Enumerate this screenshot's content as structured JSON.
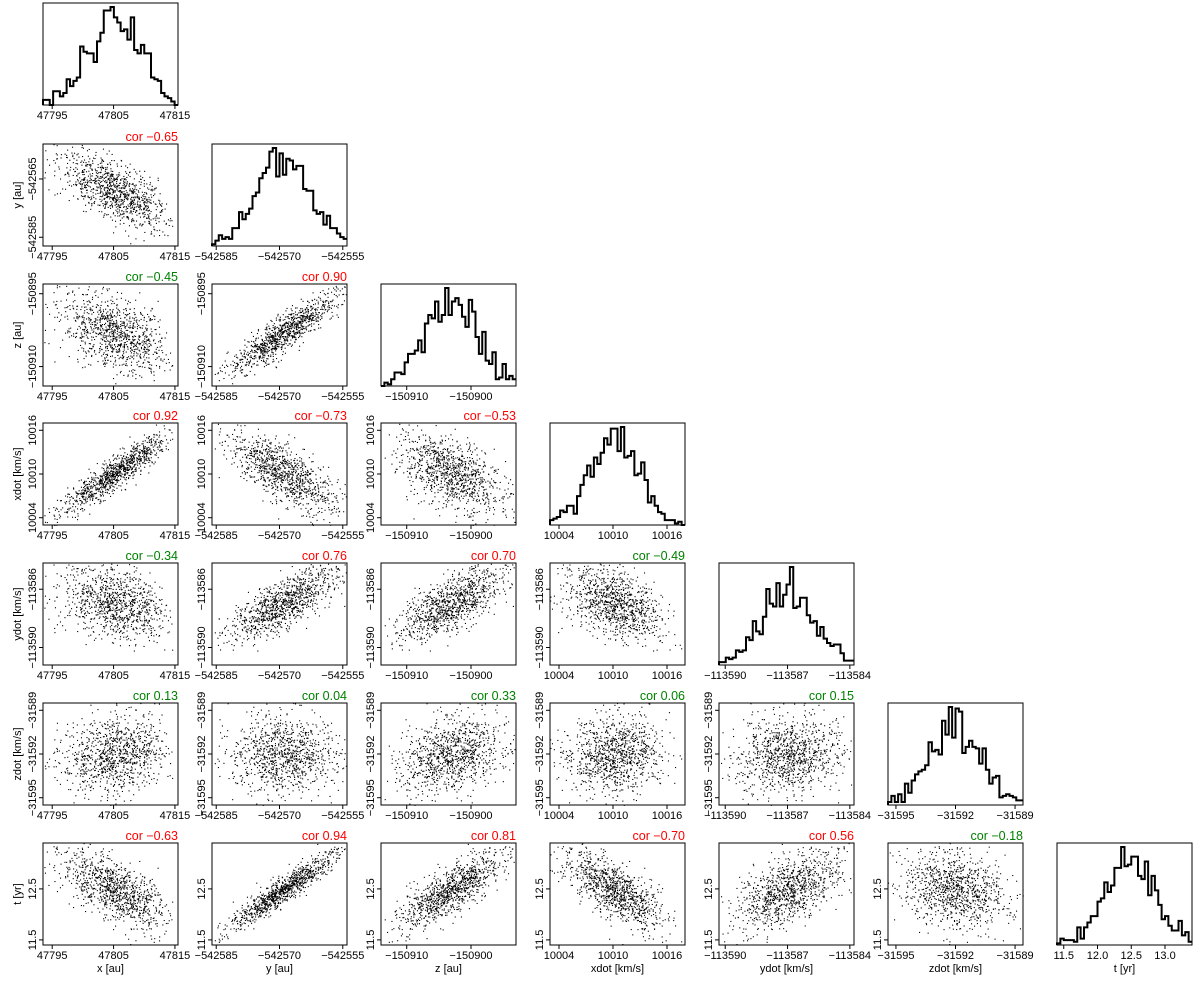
{
  "chart_data": {
    "type": "scatter",
    "variables": [
      {
        "name": "x",
        "label": "x [au]",
        "ylabel": "",
        "xlim": [
          47793.5,
          47815.5
        ],
        "ylim": [
          47793.5,
          47815.5
        ],
        "ticks": [
          47795,
          47805,
          47815
        ],
        "tick_labels": [
          "47795",
          "47805",
          "47815"
        ],
        "mean": 47805,
        "sd": 4.4
      },
      {
        "name": "y",
        "label": "y [au]",
        "ylabel": "y [au]",
        "xlim": [
          -542586,
          -542554
        ],
        "ylim": [
          -542588,
          -542553
        ],
        "ticks": [
          -542585,
          -542570,
          -542555
        ],
        "tick_labels": [
          "−542585",
          "−542570",
          "−542555"
        ],
        "yticks": [
          -542585,
          -542565
        ],
        "ytick_labels": [
          "−542585",
          "−542565"
        ],
        "mean": -542569,
        "sd": 6.5
      },
      {
        "name": "z",
        "label": "z [au]",
        "ylabel": "z [au]",
        "xlim": [
          -150914,
          -150893
        ],
        "ylim": [
          -150914,
          -150893
        ],
        "ticks": [
          -150910,
          -150900
        ],
        "tick_labels": [
          "−150910",
          "−150900"
        ],
        "yticks": [
          -150910,
          -150895
        ],
        "ytick_labels": [
          "−150910",
          "−150895"
        ],
        "mean": -150903,
        "sd": 4.2
      },
      {
        "name": "xdot",
        "label": "xdot [km/s]",
        "ylabel": "xdot [km/s]",
        "xlim": [
          10003,
          10018
        ],
        "ylim": [
          10003,
          10017
        ],
        "ticks": [
          10004,
          10010,
          10016
        ],
        "tick_labels": [
          "10004",
          "10010",
          "10016"
        ],
        "mean": 10010,
        "sd": 2.8
      },
      {
        "name": "ydot",
        "label": "ydot [km/s]",
        "ylabel": "ydot [km/s]",
        "xlim": [
          -113590.3,
          -113583.8
        ],
        "ylim": [
          -113591.2,
          -113584.2
        ],
        "ticks": [
          -113590,
          -113587,
          -113584
        ],
        "tick_labels": [
          "−113590",
          "−113587",
          "−113584"
        ],
        "yticks": [
          -113590,
          -113586
        ],
        "ytick_labels": [
          "−113590",
          "−113586"
        ],
        "mean": -113587,
        "sd": 1.25
      },
      {
        "name": "zdot",
        "label": "zdot [km/s]",
        "ylabel": "zdot [km/s]",
        "xlim": [
          -31595.4,
          -31588.6
        ],
        "ylim": [
          -31595.5,
          -31588.5
        ],
        "ticks": [
          -31595,
          -31592,
          -31589
        ],
        "tick_labels": [
          "−31595",
          "−31592",
          "−31589"
        ],
        "mean": -31592,
        "sd": 1.3
      },
      {
        "name": "t",
        "label": "t [yr]",
        "ylabel": "t [yr]",
        "xlim": [
          11.4,
          13.4
        ],
        "ylim": [
          11.4,
          13.4
        ],
        "ticks": [
          11.5,
          12.0,
          12.5,
          13.0
        ],
        "tick_labels": [
          "11.5",
          "12.0",
          "12.5",
          "13.0"
        ],
        "yticks": [
          11.5,
          12.5
        ],
        "ytick_labels": [
          "11.5",
          "12.5"
        ],
        "mean": 12.5,
        "sd": 0.38
      }
    ],
    "correlations": [
      {
        "row": "y",
        "col": "x",
        "r": -0.65,
        "label": "cor −0.65",
        "color": "#ff0000"
      },
      {
        "row": "z",
        "col": "x",
        "r": -0.45,
        "label": "cor −0.45",
        "color": "#008000"
      },
      {
        "row": "z",
        "col": "y",
        "r": 0.9,
        "label": "cor 0.90",
        "color": "#ff0000"
      },
      {
        "row": "xdot",
        "col": "x",
        "r": 0.92,
        "label": "cor 0.92",
        "color": "#ff0000"
      },
      {
        "row": "xdot",
        "col": "y",
        "r": -0.73,
        "label": "cor −0.73",
        "color": "#ff0000"
      },
      {
        "row": "xdot",
        "col": "z",
        "r": -0.53,
        "label": "cor −0.53",
        "color": "#ff0000"
      },
      {
        "row": "ydot",
        "col": "x",
        "r": -0.34,
        "label": "cor −0.34",
        "color": "#008000"
      },
      {
        "row": "ydot",
        "col": "y",
        "r": 0.76,
        "label": "cor 0.76",
        "color": "#ff0000"
      },
      {
        "row": "ydot",
        "col": "z",
        "r": 0.7,
        "label": "cor 0.70",
        "color": "#ff0000"
      },
      {
        "row": "ydot",
        "col": "xdot",
        "r": -0.49,
        "label": "cor −0.49",
        "color": "#008000"
      },
      {
        "row": "zdot",
        "col": "x",
        "r": 0.13,
        "label": "cor 0.13",
        "color": "#008000"
      },
      {
        "row": "zdot",
        "col": "y",
        "r": 0.04,
        "label": "cor 0.04",
        "color": "#008000"
      },
      {
        "row": "zdot",
        "col": "z",
        "r": 0.33,
        "label": "cor 0.33",
        "color": "#008000"
      },
      {
        "row": "zdot",
        "col": "xdot",
        "r": 0.06,
        "label": "cor 0.06",
        "color": "#008000"
      },
      {
        "row": "zdot",
        "col": "ydot",
        "r": 0.15,
        "label": "cor 0.15",
        "color": "#008000"
      },
      {
        "row": "t",
        "col": "x",
        "r": -0.63,
        "label": "cor −0.63",
        "color": "#ff0000"
      },
      {
        "row": "t",
        "col": "y",
        "r": 0.94,
        "label": "cor 0.94",
        "color": "#ff0000"
      },
      {
        "row": "t",
        "col": "z",
        "r": 0.81,
        "label": "cor 0.81",
        "color": "#ff0000"
      },
      {
        "row": "t",
        "col": "xdot",
        "r": -0.7,
        "label": "cor −0.70",
        "color": "#ff0000"
      },
      {
        "row": "t",
        "col": "ydot",
        "r": 0.56,
        "label": "cor 0.56",
        "color": "#ff0000"
      },
      {
        "row": "t",
        "col": "zdot",
        "r": -0.18,
        "label": "cor −0.18",
        "color": "#008000"
      }
    ],
    "diagonal": "histogram",
    "n_samples": 1000,
    "grid": false,
    "legend": "none",
    "colors": {
      "strong": "#ff0000",
      "weak": "#008000",
      "points": "#000000"
    }
  }
}
